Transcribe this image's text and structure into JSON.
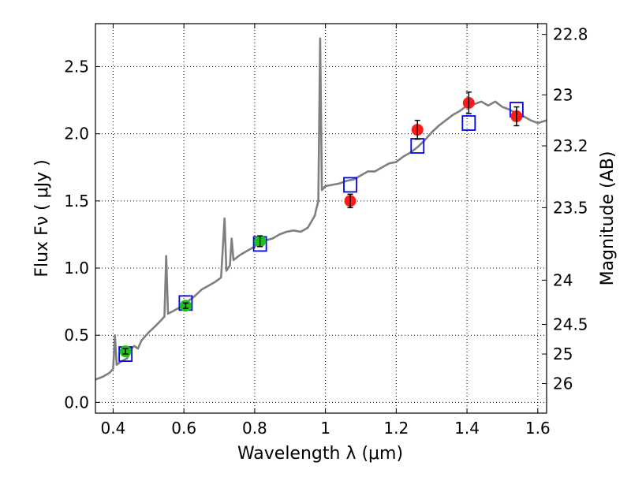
{
  "chart_data": {
    "type": "scatter",
    "xlabel": "Wavelength  λ (μm)",
    "ylabel": "Flux  Fν  ( μJy )",
    "y2label": "Magnitude (AB)",
    "xlim": [
      0.35,
      1.625
    ],
    "ylim": [
      -0.08,
      2.82
    ],
    "grid": true,
    "x_ticks": [
      {
        "value": 0.4,
        "label": "0.4"
      },
      {
        "value": 0.6,
        "label": "0.6"
      },
      {
        "value": 0.8,
        "label": "0.8"
      },
      {
        "value": 1.0,
        "label": "1"
      },
      {
        "value": 1.2,
        "label": "1.2"
      },
      {
        "value": 1.4,
        "label": "1.4"
      },
      {
        "value": 1.6,
        "label": "1.6"
      }
    ],
    "y_ticks": [
      {
        "value": 0.0,
        "label": "0.0"
      },
      {
        "value": 0.5,
        "label": "0.5"
      },
      {
        "value": 1.0,
        "label": "1.0"
      },
      {
        "value": 1.5,
        "label": "1.5"
      },
      {
        "value": 2.0,
        "label": "2.0"
      },
      {
        "value": 2.5,
        "label": "2.5"
      }
    ],
    "y2_ticks": [
      {
        "mag": 22.8,
        "flux": 2.74,
        "label": "22.8"
      },
      {
        "mag": 23.0,
        "flux": 2.29,
        "label": "23"
      },
      {
        "mag": 23.2,
        "flux": 1.91,
        "label": "23.2"
      },
      {
        "mag": 23.5,
        "flux": 1.45,
        "label": "23.5"
      },
      {
        "mag": 24.0,
        "flux": 0.91,
        "label": "24"
      },
      {
        "mag": 24.5,
        "flux": 0.58,
        "label": "24.5"
      },
      {
        "mag": 25.0,
        "flux": 0.36,
        "label": "25"
      },
      {
        "mag": 26.0,
        "flux": 0.14,
        "label": "26"
      }
    ],
    "series": [
      {
        "kind": "line",
        "color": "#7f7f7f",
        "points": [
          [
            0.35,
            0.17
          ],
          [
            0.37,
            0.19
          ],
          [
            0.39,
            0.22
          ],
          [
            0.4,
            0.25
          ],
          [
            0.405,
            0.5
          ],
          [
            0.41,
            0.28
          ],
          [
            0.42,
            0.3
          ],
          [
            0.44,
            0.33
          ],
          [
            0.45,
            0.4
          ],
          [
            0.46,
            0.42
          ],
          [
            0.47,
            0.4
          ],
          [
            0.48,
            0.46
          ],
          [
            0.5,
            0.52
          ],
          [
            0.52,
            0.57
          ],
          [
            0.535,
            0.61
          ],
          [
            0.545,
            0.64
          ],
          [
            0.55,
            1.09
          ],
          [
            0.555,
            0.66
          ],
          [
            0.57,
            0.68
          ],
          [
            0.59,
            0.71
          ],
          [
            0.61,
            0.75
          ],
          [
            0.63,
            0.79
          ],
          [
            0.65,
            0.84
          ],
          [
            0.67,
            0.87
          ],
          [
            0.69,
            0.9
          ],
          [
            0.705,
            0.93
          ],
          [
            0.715,
            1.37
          ],
          [
            0.72,
            0.98
          ],
          [
            0.73,
            1.02
          ],
          [
            0.735,
            1.22
          ],
          [
            0.74,
            1.06
          ],
          [
            0.76,
            1.1
          ],
          [
            0.78,
            1.13
          ],
          [
            0.8,
            1.16
          ],
          [
            0.82,
            1.2
          ],
          [
            0.85,
            1.22
          ],
          [
            0.87,
            1.25
          ],
          [
            0.89,
            1.27
          ],
          [
            0.91,
            1.28
          ],
          [
            0.93,
            1.27
          ],
          [
            0.95,
            1.3
          ],
          [
            0.97,
            1.39
          ],
          [
            0.975,
            1.45
          ],
          [
            0.98,
            1.5
          ],
          [
            0.985,
            2.71
          ],
          [
            0.99,
            1.58
          ],
          [
            1.0,
            1.61
          ],
          [
            1.02,
            1.62
          ],
          [
            1.04,
            1.63
          ],
          [
            1.06,
            1.65
          ],
          [
            1.08,
            1.66
          ],
          [
            1.1,
            1.69
          ],
          [
            1.12,
            1.72
          ],
          [
            1.14,
            1.72
          ],
          [
            1.16,
            1.75
          ],
          [
            1.18,
            1.78
          ],
          [
            1.2,
            1.79
          ],
          [
            1.22,
            1.83
          ],
          [
            1.24,
            1.86
          ],
          [
            1.26,
            1.9
          ],
          [
            1.28,
            1.95
          ],
          [
            1.3,
            2.01
          ],
          [
            1.32,
            2.06
          ],
          [
            1.34,
            2.1
          ],
          [
            1.36,
            2.14
          ],
          [
            1.38,
            2.17
          ],
          [
            1.4,
            2.21
          ],
          [
            1.42,
            2.22
          ],
          [
            1.44,
            2.24
          ],
          [
            1.46,
            2.21
          ],
          [
            1.48,
            2.24
          ],
          [
            1.5,
            2.2
          ],
          [
            1.52,
            2.18
          ],
          [
            1.54,
            2.15
          ],
          [
            1.56,
            2.13
          ],
          [
            1.58,
            2.1
          ],
          [
            1.6,
            2.08
          ],
          [
            1.625,
            2.1
          ]
        ]
      },
      {
        "kind": "open-square",
        "color": "#0000ff",
        "points": [
          [
            0.435,
            0.36
          ],
          [
            0.605,
            0.74
          ],
          [
            0.815,
            1.18
          ],
          [
            1.07,
            1.62
          ],
          [
            1.26,
            1.91
          ],
          [
            1.405,
            2.08
          ],
          [
            1.54,
            2.18
          ]
        ]
      },
      {
        "kind": "filled-circle",
        "color": "#1fbf1f",
        "points": [
          {
            "x": 0.435,
            "y": 0.38,
            "err": 0.02
          },
          {
            "x": 0.605,
            "y": 0.72,
            "err": 0.02
          },
          {
            "x": 0.815,
            "y": 1.2,
            "err": 0.04
          }
        ]
      },
      {
        "kind": "filled-circle",
        "color": "#ff1a1a",
        "points": [
          {
            "x": 1.07,
            "y": 1.5,
            "err": 0.05
          },
          {
            "x": 1.26,
            "y": 2.03,
            "err": 0.07
          },
          {
            "x": 1.405,
            "y": 2.23,
            "err": 0.08
          },
          {
            "x": 1.54,
            "y": 2.13,
            "err": 0.07
          }
        ]
      }
    ]
  }
}
